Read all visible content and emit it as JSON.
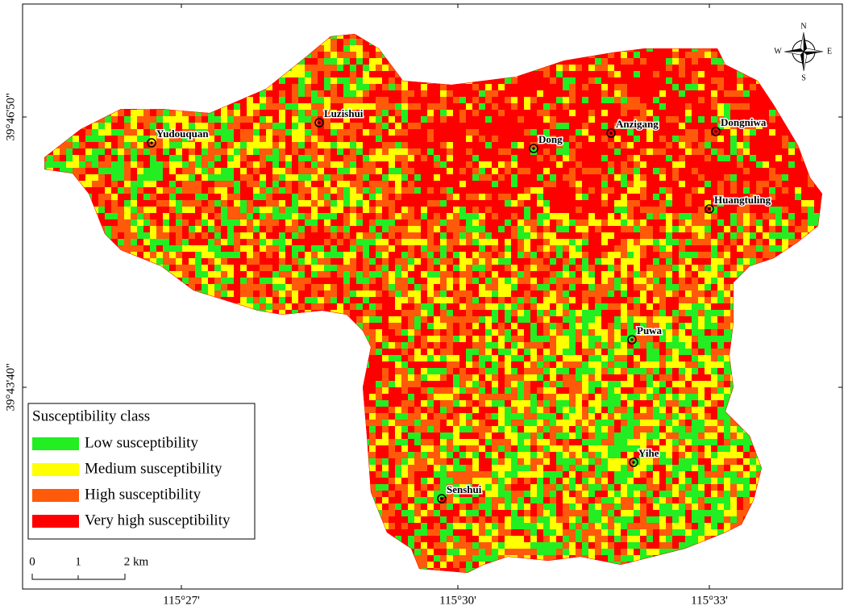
{
  "map": {
    "places": [
      "Yudouquan",
      "Luzishui",
      "Dong",
      "Anzigang",
      "Dongniwa",
      "Huangtuling",
      "Puwa",
      "Yihe",
      "Senshui"
    ],
    "coordinates": {
      "longitude": [
        "115°27'",
        "115°30'",
        "115°33'"
      ],
      "latitude": [
        "39°46'50''",
        "39°43'40''"
      ]
    },
    "legend": {
      "title": "Susceptibility class",
      "classes": [
        {
          "label": "Low susceptibility",
          "color": "#22ee22"
        },
        {
          "label": "Medium susceptibility",
          "color": "#ffff00"
        },
        {
          "label": "High susceptibility",
          "color": "#ff5a0a"
        },
        {
          "label": "Very high susceptibility",
          "color": "#ff0000"
        }
      ]
    },
    "scale_bar": {
      "labels": [
        "0",
        "1",
        "2 km"
      ]
    },
    "compass": {
      "north": "N",
      "south": "S",
      "east": "E",
      "west": "W"
    }
  }
}
